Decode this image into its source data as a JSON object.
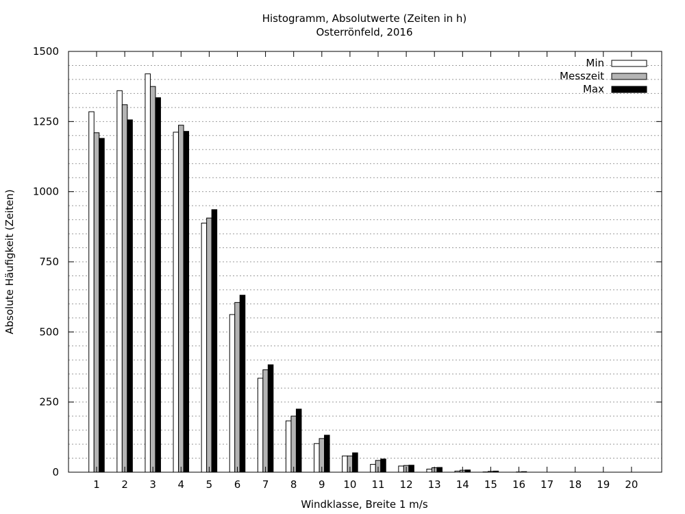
{
  "chart_data": {
    "type": "bar",
    "title": "Histogramm, Absolutwerte (Zeiten in h)",
    "subtitle": "Osterrönfeld, 2016",
    "xlabel": "Windklasse, Breite 1 m/s",
    "ylabel": "Absolute Häufigkeit (Zeiten)",
    "ylim": [
      0,
      1500
    ],
    "yticks": [
      0,
      250,
      500,
      750,
      1000,
      1250,
      1500
    ],
    "grid": "horizontal dotted",
    "legend": "top-right",
    "categories": [
      "1",
      "2",
      "3",
      "4",
      "5",
      "6",
      "7",
      "8",
      "9",
      "10",
      "11",
      "12",
      "13",
      "14",
      "15",
      "16",
      "17",
      "18",
      "19",
      "20"
    ],
    "series": [
      {
        "name": "Min",
        "color": "#ffffff",
        "values": [
          1285,
          1360,
          1420,
          1212,
          888,
          562,
          335,
          183,
          102,
          58,
          28,
          22,
          11,
          4,
          1,
          0,
          0,
          0,
          0,
          0
        ]
      },
      {
        "name": "Messzeit",
        "color": "#b4b4b4",
        "values": [
          1210,
          1310,
          1375,
          1237,
          906,
          605,
          365,
          200,
          120,
          58,
          42,
          24,
          16,
          7,
          3,
          1,
          0,
          0,
          0,
          0
        ]
      },
      {
        "name": "Max",
        "color": "#000000",
        "values": [
          1190,
          1256,
          1335,
          1215,
          936,
          631,
          383,
          225,
          132,
          69,
          47,
          25,
          17,
          8,
          4,
          2,
          0,
          0,
          0,
          0
        ]
      }
    ]
  }
}
